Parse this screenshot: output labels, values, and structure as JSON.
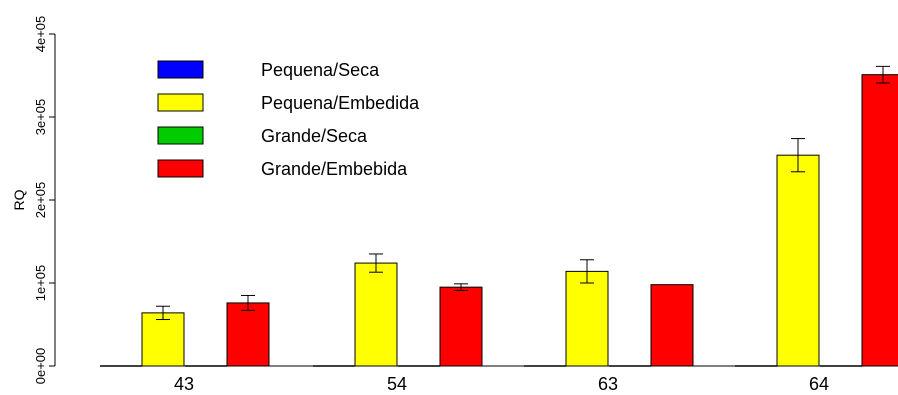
{
  "chart_data": {
    "type": "bar",
    "title": "",
    "xlabel": "",
    "ylabel": "RQ",
    "ylim": [
      0,
      400000
    ],
    "yticks": [
      0,
      100000,
      200000,
      300000,
      400000
    ],
    "ytick_labels": [
      "0e+00",
      "1e+05",
      "2e+05",
      "3e+05",
      "4e+05"
    ],
    "grid": false,
    "legend_position": "top-left",
    "categories": [
      "43",
      "54",
      "63",
      "64"
    ],
    "series": [
      {
        "name": "Pequena/Seca",
        "color": "#0000ff",
        "values": [
          0,
          0,
          0,
          0
        ],
        "errors": [
          0,
          0,
          0,
          0
        ]
      },
      {
        "name": "Pequena/Embedida",
        "color": "#ffff00",
        "values": [
          64000,
          124000,
          114000,
          254000
        ],
        "errors": [
          8000,
          11000,
          14000,
          20000
        ]
      },
      {
        "name": "Grande/Seca",
        "color": "#00cc00",
        "values": [
          0,
          0,
          0,
          0
        ],
        "errors": [
          0,
          0,
          0,
          0
        ]
      },
      {
        "name": "Grande/Embebida",
        "color": "#ff0000",
        "values": [
          76000,
          95000,
          98000,
          351000
        ],
        "errors": [
          9000,
          4000,
          0,
          10000
        ]
      }
    ]
  }
}
